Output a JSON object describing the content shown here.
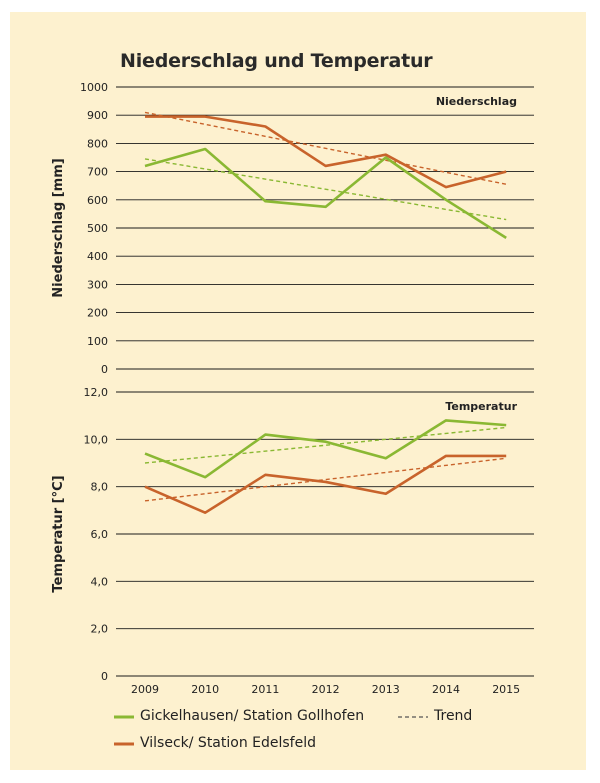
{
  "title": "Niederschlag und Temperatur",
  "colors": {
    "green": "#8ab833",
    "orange": "#c8632b",
    "background": "#fdf1cf",
    "grid": "#1a1a1a"
  },
  "chart_data": [
    {
      "type": "line",
      "panel_label": "Niederschlag",
      "ylabel": "Niederschlag [mm]",
      "ylim": [
        0,
        1000
      ],
      "yticks": [
        "0",
        "100",
        "200",
        "300",
        "400",
        "500",
        "600",
        "700",
        "800",
        "900",
        "1000"
      ],
      "x": [
        2009,
        2010,
        2011,
        2012,
        2013,
        2014,
        2015
      ],
      "series": [
        {
          "name": "Gickelhausen/ Station Gollhofen",
          "color": "#8ab833",
          "values": [
            720,
            780,
            595,
            575,
            750,
            600,
            465
          ]
        },
        {
          "name": "Vilseck/ Station Edelsfeld",
          "color": "#c8632b",
          "values": [
            895,
            895,
            860,
            720,
            760,
            645,
            700
          ]
        }
      ],
      "trends": [
        {
          "color": "#8ab833",
          "start": 745,
          "end": 530
        },
        {
          "color": "#c8632b",
          "start": 910,
          "end": 655
        }
      ]
    },
    {
      "type": "line",
      "panel_label": "Temperatur",
      "ylabel": "Temperatur [°C]",
      "ylim": [
        0,
        12
      ],
      "yticks": [
        "0",
        "2,0",
        "4,0",
        "6,0",
        "8,0",
        "10,0",
        "12,0"
      ],
      "x": [
        2009,
        2010,
        2011,
        2012,
        2013,
        2014,
        2015
      ],
      "xticks": [
        "2009",
        "2010",
        "2011",
        "2012",
        "2013",
        "2014",
        "2015"
      ],
      "series": [
        {
          "name": "Gickelhausen/ Station Gollhofen",
          "color": "#8ab833",
          "values": [
            9.4,
            8.4,
            10.2,
            9.9,
            9.2,
            10.8,
            10.6
          ]
        },
        {
          "name": "Vilseck/ Station Edelsfeld",
          "color": "#c8632b",
          "values": [
            8.0,
            6.9,
            8.5,
            8.2,
            7.7,
            9.3,
            9.3
          ]
        }
      ],
      "trends": [
        {
          "color": "#8ab833",
          "start": 9.0,
          "end": 10.5
        },
        {
          "color": "#c8632b",
          "start": 7.4,
          "end": 9.2
        }
      ]
    }
  ],
  "legend": {
    "green_label": "Gickelhausen/ Station Gollhofen",
    "orange_label": "Vilseck/ Station Edelsfeld",
    "trend_label": "Trend"
  }
}
